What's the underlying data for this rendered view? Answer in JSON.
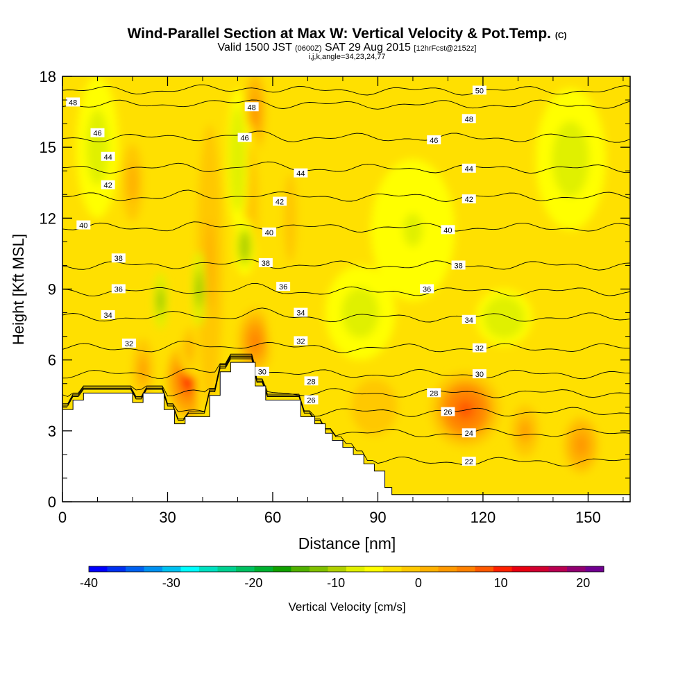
{
  "title": {
    "main": "Wind-Parallel Section at Max W: Vertical Velocity & Pot.Temp.",
    "main_suffix": "(C)",
    "valid_prefix": "Valid 1500 JST",
    "valid_small1": "(0600Z)",
    "valid_date": "SAT 29 Aug 2015",
    "valid_small2": "[12hrFcst@2152z]",
    "params": "i,j,k,angle=34,23,24,77"
  },
  "colorbar": {
    "label": "Vertical Velocity [cm/s]",
    "min": -40,
    "max": 22.5,
    "step": 2.5,
    "tick_values": [
      -40,
      -30,
      -20,
      -10,
      0,
      10,
      20
    ],
    "tick_labels": [
      "-40",
      "-30",
      "-20",
      "-10",
      "0",
      "10",
      "20"
    ],
    "colors": [
      "#0000ff",
      "#0030f0",
      "#0060f0",
      "#0090f0",
      "#00c0f0",
      "#00ffff",
      "#00e0c0",
      "#00d090",
      "#00c060",
      "#00b030",
      "#10a000",
      "#50b000",
      "#80c000",
      "#b0d000",
      "#e0f000",
      "#ffff00",
      "#ffe000",
      "#ffc800",
      "#ffb000",
      "#ff9800",
      "#ff8000",
      "#ff5800",
      "#ff2000",
      "#e80010",
      "#d00030",
      "#b80050",
      "#900070",
      "#700090"
    ]
  },
  "chart_data": {
    "type": "contour",
    "xlabel": "Distance [nm]",
    "ylabel": "Height [Kft MSL]",
    "xlim": [
      0,
      162
    ],
    "ylim": [
      0,
      18
    ],
    "x_ticks": [
      0,
      30,
      60,
      90,
      120,
      150
    ],
    "x_tick_labels": [
      "0",
      "30",
      "60",
      "90",
      "120",
      "150"
    ],
    "y_ticks": [
      0,
      3,
      6,
      9,
      12,
      15,
      18
    ],
    "y_tick_labels": [
      "0",
      "3",
      "6",
      "9",
      "12",
      "15",
      "18"
    ],
    "terrain": [
      [
        0,
        3.9
      ],
      [
        3,
        3.9
      ],
      [
        3,
        4.3
      ],
      [
        6,
        4.3
      ],
      [
        6,
        4.6
      ],
      [
        20,
        4.6
      ],
      [
        20,
        4.2
      ],
      [
        23,
        4.2
      ],
      [
        23,
        4.6
      ],
      [
        29,
        4.6
      ],
      [
        29,
        3.9
      ],
      [
        32,
        3.9
      ],
      [
        32,
        3.3
      ],
      [
        35,
        3.3
      ],
      [
        35,
        3.6
      ],
      [
        42,
        3.6
      ],
      [
        42,
        4.5
      ],
      [
        45,
        4.5
      ],
      [
        45,
        5.5
      ],
      [
        48,
        5.5
      ],
      [
        48,
        5.9
      ],
      [
        55,
        5.9
      ],
      [
        55,
        4.9
      ],
      [
        58,
        4.9
      ],
      [
        58,
        4.3
      ],
      [
        68,
        4.3
      ],
      [
        68,
        3.6
      ],
      [
        72,
        3.6
      ],
      [
        72,
        3.3
      ],
      [
        75,
        3.3
      ],
      [
        75,
        2.9
      ],
      [
        77,
        2.9
      ],
      [
        77,
        2.6
      ],
      [
        80,
        2.6
      ],
      [
        80,
        2.3
      ],
      [
        83,
        2.3
      ],
      [
        83,
        2.0
      ],
      [
        86,
        2.0
      ],
      [
        86,
        1.6
      ],
      [
        89,
        1.6
      ],
      [
        89,
        1.3
      ],
      [
        92,
        1.3
      ],
      [
        92,
        0.6
      ],
      [
        94,
        0.6
      ],
      [
        94,
        0.3
      ],
      [
        162,
        0.3
      ]
    ],
    "w_features": [
      {
        "x": 36,
        "y": 5.2,
        "rx": 6,
        "ry": 1.6,
        "w": 18
      },
      {
        "x": 55,
        "y": 6.8,
        "rx": 5,
        "ry": 1.4,
        "w": 12
      },
      {
        "x": 23,
        "y": 5.6,
        "rx": 3,
        "ry": 1.3,
        "w": 9
      },
      {
        "x": 115,
        "y": 3.9,
        "rx": 10,
        "ry": 1.6,
        "w": 15
      },
      {
        "x": 132,
        "y": 3.0,
        "rx": 4,
        "ry": 1.1,
        "w": 9
      },
      {
        "x": 148,
        "y": 2.4,
        "rx": 5,
        "ry": 1.2,
        "w": 10
      },
      {
        "x": 89,
        "y": 4.0,
        "rx": 9,
        "ry": 1.6,
        "w": 5
      },
      {
        "x": 55,
        "y": 16.5,
        "rx": 3,
        "ry": 1.8,
        "w": 10
      },
      {
        "x": 20,
        "y": 13.5,
        "rx": 4,
        "ry": 2.2,
        "w": 7
      },
      {
        "x": 53,
        "y": 12.5,
        "rx": 4,
        "ry": 3.5,
        "w": 5
      },
      {
        "x": 37,
        "y": 6.5,
        "rx": 4,
        "ry": 1.2,
        "w": 7
      },
      {
        "x": 42,
        "y": 10.0,
        "rx": 5,
        "ry": 8,
        "w": 6
      },
      {
        "x": 65,
        "y": 12,
        "rx": 8,
        "ry": 8,
        "w": 3
      },
      {
        "x": 28,
        "y": 8.5,
        "rx": 2,
        "ry": 1.2,
        "w": -9
      },
      {
        "x": 39,
        "y": 9.0,
        "rx": 2,
        "ry": 1.6,
        "w": -9
      },
      {
        "x": 52,
        "y": 10.8,
        "rx": 3,
        "ry": 1.2,
        "w": -8
      },
      {
        "x": 50,
        "y": 14.5,
        "rx": 3,
        "ry": 3,
        "w": -5
      },
      {
        "x": 126,
        "y": 7.8,
        "rx": 8,
        "ry": 1.2,
        "w": -5
      },
      {
        "x": 145,
        "y": 14.5,
        "rx": 10,
        "ry": 3,
        "w": -4
      },
      {
        "x": 10,
        "y": 15.0,
        "rx": 6,
        "ry": 3,
        "w": -4
      },
      {
        "x": 85,
        "y": 8.0,
        "rx": 10,
        "ry": 2,
        "w": -4
      },
      {
        "x": 100,
        "y": 11.5,
        "rx": 12,
        "ry": 3,
        "w": -3
      }
    ],
    "theta_isentropes": [
      {
        "value": 22,
        "y": 1.7
      },
      {
        "value": 24,
        "y": 2.9
      },
      {
        "value": 26,
        "y": 3.8
      },
      {
        "value": 28,
        "y": 4.6
      },
      {
        "value": 30,
        "y": 5.4
      },
      {
        "value": 32,
        "y": 6.5
      },
      {
        "value": 34,
        "y": 7.8
      },
      {
        "value": 36,
        "y": 8.9
      },
      {
        "value": 38,
        "y": 10.0
      },
      {
        "value": 40,
        "y": 11.6
      },
      {
        "value": 42,
        "y": 12.9
      },
      {
        "value": 44,
        "y": 14.1
      },
      {
        "value": 46,
        "y": 15.4
      },
      {
        "value": 48,
        "y": 16.8
      },
      {
        "value": 50,
        "y": 17.4
      }
    ],
    "theta_labels": [
      {
        "text": "50",
        "x": 119,
        "y": 17.4
      },
      {
        "text": "48",
        "x": 3,
        "y": 16.9
      },
      {
        "text": "48",
        "x": 54,
        "y": 16.7
      },
      {
        "text": "48",
        "x": 116,
        "y": 16.2
      },
      {
        "text": "46",
        "x": 10,
        "y": 15.6
      },
      {
        "text": "46",
        "x": 52,
        "y": 15.4
      },
      {
        "text": "46",
        "x": 106,
        "y": 15.3
      },
      {
        "text": "44",
        "x": 13,
        "y": 14.6
      },
      {
        "text": "44",
        "x": 68,
        "y": 13.9
      },
      {
        "text": "44",
        "x": 116,
        "y": 14.1
      },
      {
        "text": "42",
        "x": 13,
        "y": 13.4
      },
      {
        "text": "42",
        "x": 62,
        "y": 12.7
      },
      {
        "text": "42",
        "x": 116,
        "y": 12.8
      },
      {
        "text": "40",
        "x": 6,
        "y": 11.7
      },
      {
        "text": "40",
        "x": 59,
        "y": 11.4
      },
      {
        "text": "40",
        "x": 110,
        "y": 11.5
      },
      {
        "text": "38",
        "x": 16,
        "y": 10.3
      },
      {
        "text": "38",
        "x": 58,
        "y": 10.1
      },
      {
        "text": "38",
        "x": 113,
        "y": 10.0
      },
      {
        "text": "36",
        "x": 16,
        "y": 9.0
      },
      {
        "text": "36",
        "x": 63,
        "y": 9.1
      },
      {
        "text": "36",
        "x": 104,
        "y": 9.0
      },
      {
        "text": "34",
        "x": 13,
        "y": 7.9
      },
      {
        "text": "34",
        "x": 68,
        "y": 8.0
      },
      {
        "text": "34",
        "x": 116,
        "y": 7.7
      },
      {
        "text": "32",
        "x": 19,
        "y": 6.7
      },
      {
        "text": "32",
        "x": 68,
        "y": 6.8
      },
      {
        "text": "32",
        "x": 119,
        "y": 6.5
      },
      {
        "text": "30",
        "x": 57,
        "y": 5.5
      },
      {
        "text": "30",
        "x": 119,
        "y": 5.4
      },
      {
        "text": "28",
        "x": 71,
        "y": 5.1
      },
      {
        "text": "28",
        "x": 106,
        "y": 4.6
      },
      {
        "text": "26",
        "x": 71,
        "y": 4.3
      },
      {
        "text": "26",
        "x": 110,
        "y": 3.8
      },
      {
        "text": "24",
        "x": 116,
        "y": 2.9
      },
      {
        "text": "22",
        "x": 116,
        "y": 1.7
      }
    ]
  }
}
